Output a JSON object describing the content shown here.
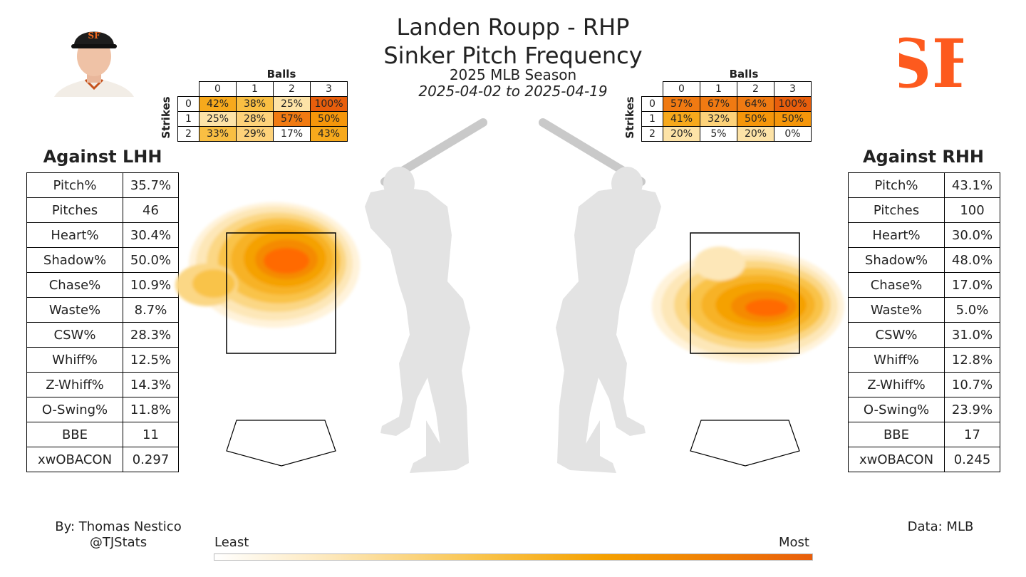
{
  "header": {
    "title_line1": "Landen Roupp - RHP",
    "title_line2": "Sinker Pitch Frequency",
    "season": "2025 MLB Season",
    "dates": "2025-04-02 to 2025-04-19"
  },
  "logos": {
    "player_photo": "player-headshot-icon",
    "team_logo": "sf-giants-logo-icon",
    "team_logo_text": "SF"
  },
  "count_grids": {
    "balls_label": "Balls",
    "strikes_label": "Strikes",
    "columns": [
      "0",
      "1",
      "2",
      "3"
    ],
    "rows": [
      "0",
      "1",
      "2"
    ],
    "lhh": [
      [
        "42%",
        "38%",
        "25%",
        "100%"
      ],
      [
        "25%",
        "28%",
        "57%",
        "50%"
      ],
      [
        "33%",
        "29%",
        "17%",
        "43%"
      ]
    ],
    "rhh": [
      [
        "57%",
        "67%",
        "64%",
        "100%"
      ],
      [
        "41%",
        "32%",
        "50%",
        "50%"
      ],
      [
        "20%",
        "5%",
        "20%",
        "0%"
      ]
    ]
  },
  "lhh": {
    "title": "Against LHH",
    "rows": [
      {
        "k": "Pitch%",
        "v": "35.7%"
      },
      {
        "k": "Pitches",
        "v": "46"
      },
      {
        "k": "Heart%",
        "v": "30.4%"
      },
      {
        "k": "Shadow%",
        "v": "50.0%"
      },
      {
        "k": "Chase%",
        "v": "10.9%"
      },
      {
        "k": "Waste%",
        "v": "8.7%"
      },
      {
        "k": "CSW%",
        "v": "28.3%"
      },
      {
        "k": "Whiff%",
        "v": "12.5%"
      },
      {
        "k": "Z-Whiff%",
        "v": "14.3%"
      },
      {
        "k": "O-Swing%",
        "v": "11.8%"
      },
      {
        "k": "BBE",
        "v": "11"
      },
      {
        "k": "xwOBACON",
        "v": "0.297"
      }
    ]
  },
  "rhh": {
    "title": "Against RHH",
    "rows": [
      {
        "k": "Pitch%",
        "v": "43.1%"
      },
      {
        "k": "Pitches",
        "v": "100"
      },
      {
        "k": "Heart%",
        "v": "30.0%"
      },
      {
        "k": "Shadow%",
        "v": "48.0%"
      },
      {
        "k": "Chase%",
        "v": "17.0%"
      },
      {
        "k": "Waste%",
        "v": "5.0%"
      },
      {
        "k": "CSW%",
        "v": "31.0%"
      },
      {
        "k": "Whiff%",
        "v": "12.8%"
      },
      {
        "k": "Z-Whiff%",
        "v": "10.7%"
      },
      {
        "k": "O-Swing%",
        "v": "23.9%"
      },
      {
        "k": "BBE",
        "v": "17"
      },
      {
        "k": "xwOBACON",
        "v": "0.245"
      }
    ]
  },
  "footer": {
    "by": "By: Thomas Nestico",
    "handle": "@TJStats",
    "source": "Data: MLB"
  },
  "colorbar": {
    "least": "Least",
    "most": "Most"
  },
  "chart_data": {
    "type": "heatmap",
    "title": "Sinker Pitch Frequency",
    "panels": [
      {
        "name": "Against LHH",
        "density_peak": "upper-middle of zone, extending outside to the left"
      },
      {
        "name": "Against RHH",
        "density_peak": "lower-middle of zone, extending to the right"
      }
    ],
    "colors": {
      "least": "#ffffff",
      "low": "#fde7b8",
      "mid": "#f5a100",
      "high": "#ff6a00",
      "grid_high": "#e85e0c"
    }
  }
}
